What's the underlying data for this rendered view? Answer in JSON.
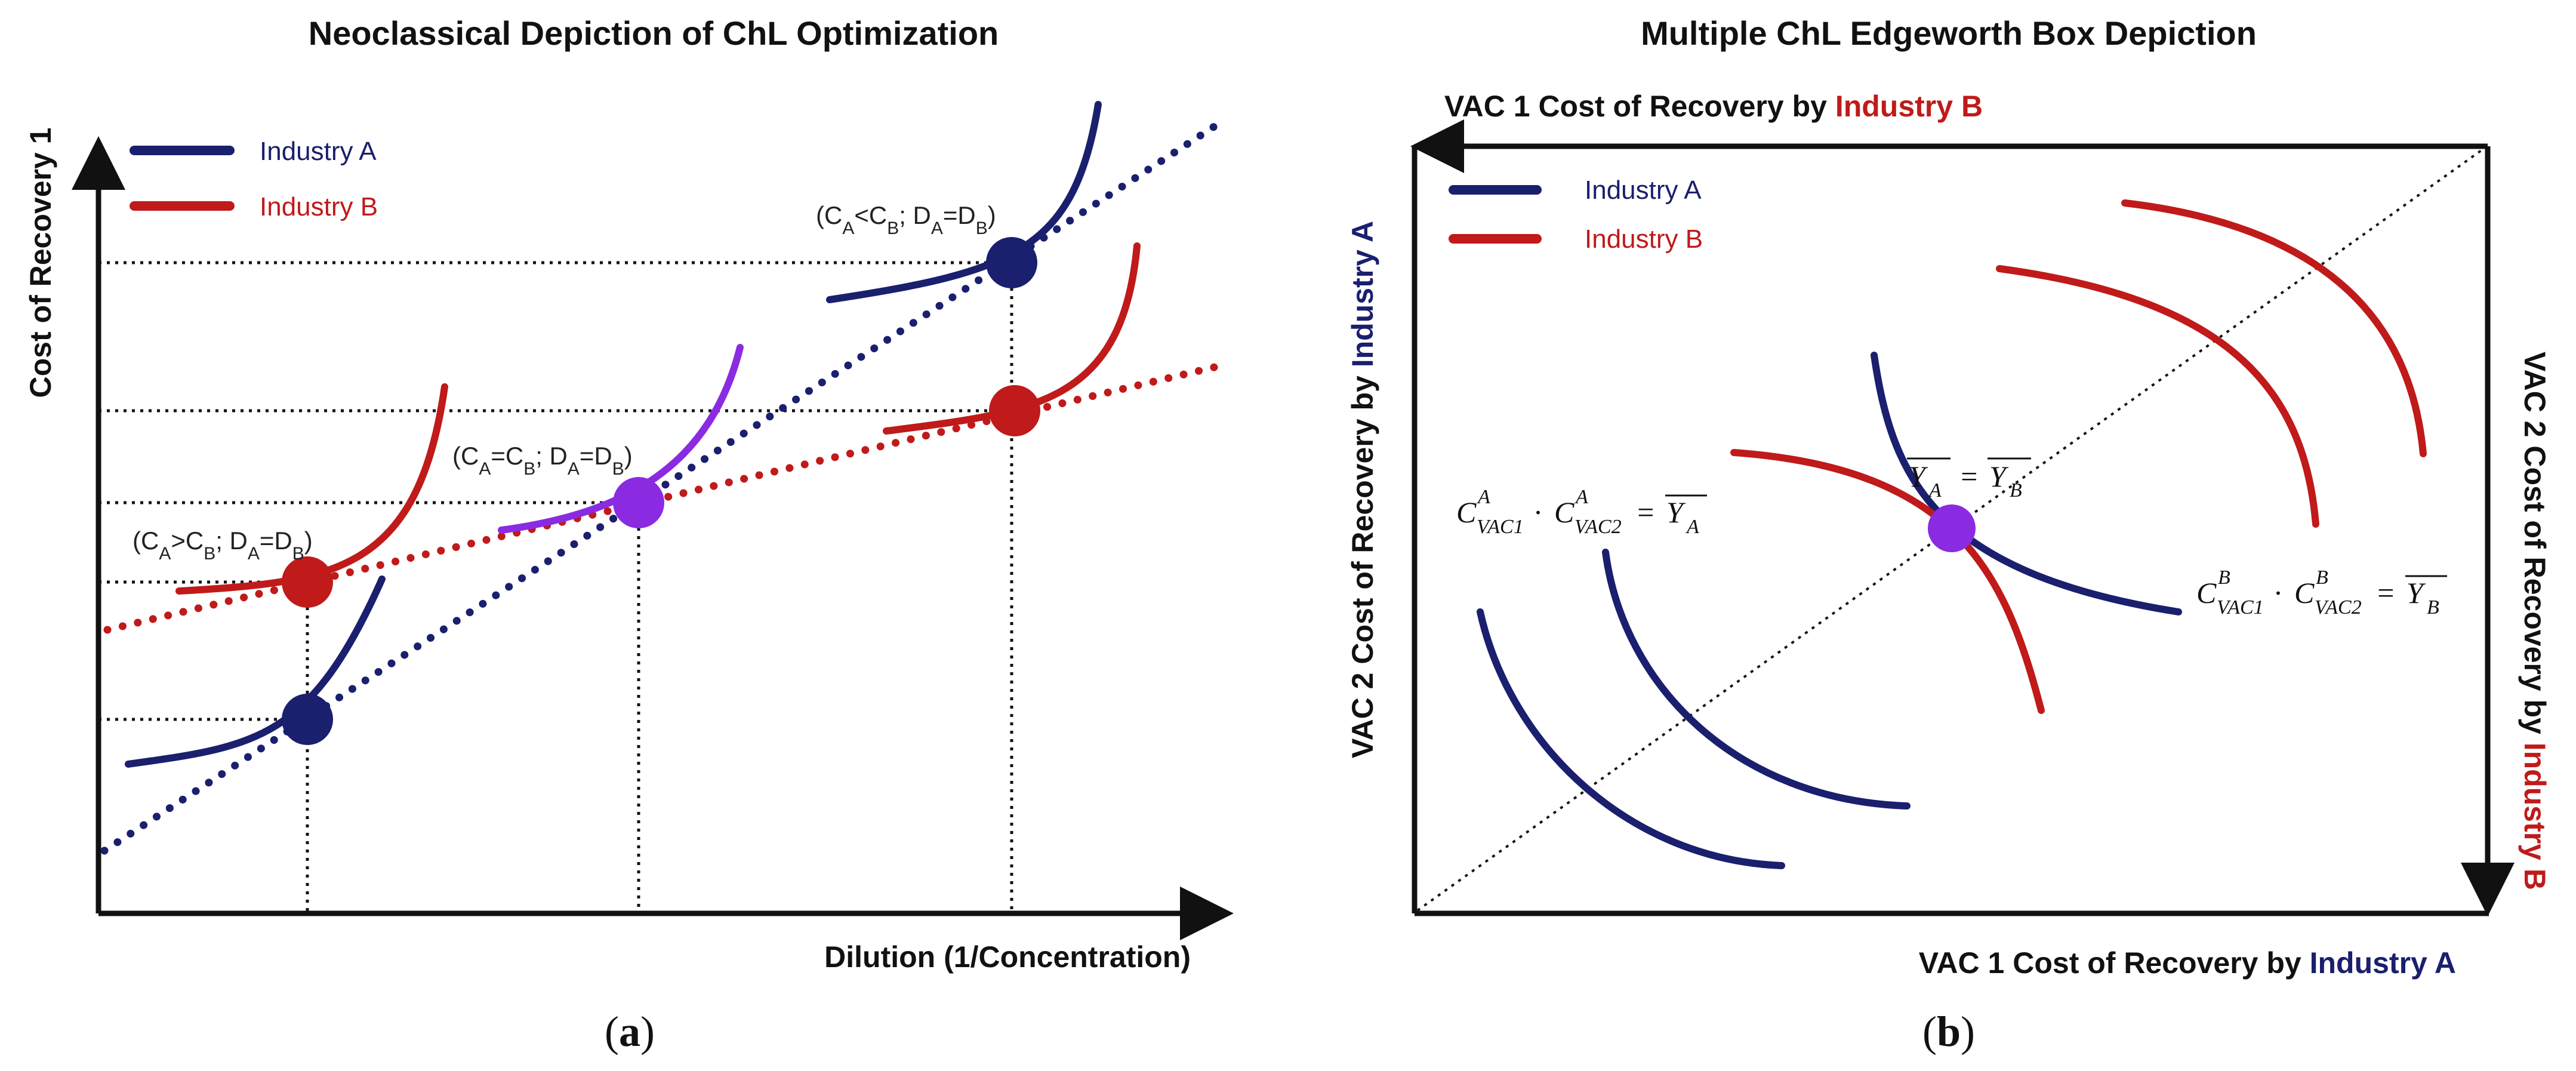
{
  "panel_a": {
    "title": "Neoclassical Depiction of ChL Optimization",
    "x_axis_label": "Dilution (1/Concentration)",
    "y_axis_label": "Cost of Recovery 1",
    "caption": "a",
    "legend": [
      {
        "label": "Industry A",
        "color": "#1a1f6e"
      },
      {
        "label": "Industry B",
        "color": "#c01a1a"
      }
    ],
    "annotations": {
      "a_gt_b": {
        "base": "(C",
        "s1": "A",
        "op": ">C",
        "s2": "B",
        "mid": "; D",
        "s3": "A",
        "eq": "=D",
        "s4": "B",
        "end": ")"
      },
      "a_eq_b": {
        "base": "(C",
        "s1": "A",
        "op": "=C",
        "s2": "B",
        "mid": "; D",
        "s3": "A",
        "eq": "=D",
        "s4": "B",
        "end": ")"
      },
      "a_lt_b": {
        "base": "(C",
        "s1": "A",
        "op": "<C",
        "s2": "B",
        "mid": "; D",
        "s3": "A",
        "eq": "=D",
        "s4": "B",
        "end": ")"
      }
    }
  },
  "panel_b": {
    "title": "Multiple ChL Edgeworth Box Depiction",
    "caption": "b",
    "top_label": {
      "prefix": "VAC 1 Cost of Recovery by ",
      "emph": "Industry B"
    },
    "bottom_label": {
      "prefix": "VAC 1 Cost of Recovery by ",
      "emph": "Industry A"
    },
    "left_label": {
      "prefix": "VAC 2 Cost of Recovery by ",
      "emph": "Industry A"
    },
    "right_label": {
      "prefix": "VAC 2 Cost of Recovery by ",
      "emph": "Industry B"
    },
    "legend": [
      {
        "label": "Industry A",
        "color": "#1a1f6e"
      },
      {
        "label": "Industry B",
        "color": "#c01a1a"
      }
    ],
    "formula_a": {
      "c": "C",
      "sup": "A",
      "sub1": "VAC1",
      "sub2": "VAC2",
      "dot": "·",
      "eq": "=",
      "y": "Y",
      "ysub": "A"
    },
    "formula_b": {
      "c": "C",
      "sup": "B",
      "sub1": "VAC1",
      "sub2": "VAC2",
      "dot": "·",
      "eq": "=",
      "y": "Y",
      "ysub": "B"
    },
    "formula_mid": {
      "y": "Y",
      "a": "A",
      "eq": "=",
      "b": "B"
    }
  },
  "colors": {
    "industry_a": "#1a1f6e",
    "industry_b": "#c01a1a",
    "combined": "#8a2be2",
    "axis": "#111111"
  }
}
